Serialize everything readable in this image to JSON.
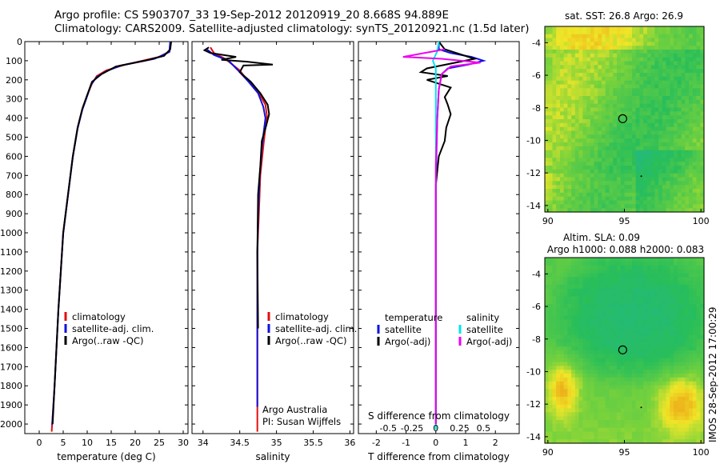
{
  "header": {
    "line1": "Argo profile: CS 5903707_33 19-Sep-2012 20120919_20 8.668S 94.889E",
    "line2": "Climatology: CARS2009. Satellite-adjusted climatology: synTS_20120921.nc (1.5d later)"
  },
  "colors": {
    "climatology": "#e01010",
    "satellite": "#1010e0",
    "argo": "#000000",
    "sat_T": "#1010e0",
    "sat_S": "#00e5ee",
    "argo_S": "#ee00ee"
  },
  "chart_data": [
    {
      "type": "line",
      "xlabel": "temperature (deg C)",
      "ylabel": "",
      "xlim": [
        -3,
        31
      ],
      "ylim": [
        2050,
        0
      ],
      "xticks": [
        0,
        5,
        10,
        15,
        20,
        25,
        30
      ],
      "yticks": [
        0,
        100,
        200,
        300,
        400,
        500,
        600,
        700,
        800,
        900,
        1000,
        1100,
        1200,
        1300,
        1400,
        1500,
        1600,
        1700,
        1800,
        1900,
        2000
      ],
      "legend": [
        "climatology",
        "satellite-adj. clim.",
        "Argo(..raw -QC)"
      ],
      "series": [
        {
          "name": "climatology",
          "color": "#e01010",
          "points": [
            [
              27.3,
              0
            ],
            [
              27.2,
              50
            ],
            [
              25,
              80
            ],
            [
              18,
              120
            ],
            [
              14,
              150
            ],
            [
              12,
              180
            ],
            [
              11,
              220
            ],
            [
              10,
              280
            ],
            [
              9,
              350
            ],
            [
              8,
              450
            ],
            [
              7,
              600
            ],
            [
              6,
              800
            ],
            [
              5,
              1000
            ],
            [
              4.5,
              1200
            ],
            [
              4,
              1400
            ],
            [
              3.6,
              1600
            ],
            [
              3.2,
              1800
            ],
            [
              2.7,
              2000
            ],
            [
              2.6,
              2040
            ]
          ]
        },
        {
          "name": "satellite-adj. clim.",
          "color": "#1010e0",
          "points": [
            [
              27.3,
              0
            ],
            [
              27.1,
              55
            ],
            [
              24,
              90
            ],
            [
              17,
              125
            ],
            [
              14,
              155
            ],
            [
              12,
              185
            ],
            [
              10.8,
              225
            ],
            [
              10,
              285
            ],
            [
              9,
              355
            ],
            [
              8,
              455
            ],
            [
              7,
              605
            ],
            [
              6,
              805
            ],
            [
              5,
              1005
            ],
            [
              4.5,
              1205
            ],
            [
              4,
              1405
            ],
            [
              3.6,
              1605
            ],
            [
              3.2,
              1805
            ],
            [
              2.7,
              2005
            ]
          ]
        },
        {
          "name": "Argo(..raw -QC)",
          "color": "#000000",
          "points": [
            [
              27.5,
              0
            ],
            [
              27.3,
              40
            ],
            [
              26,
              75
            ],
            [
              22,
              100
            ],
            [
              16,
              130
            ],
            [
              13,
              170
            ],
            [
              11,
              210
            ],
            [
              10,
              280
            ],
            [
              9,
              350
            ],
            [
              8,
              450
            ],
            [
              7,
              600
            ],
            [
              6,
              800
            ],
            [
              5,
              1000
            ],
            [
              4.5,
              1200
            ],
            [
              4,
              1400
            ],
            [
              3.6,
              1600
            ],
            [
              3.2,
              1800
            ],
            [
              2.8,
              2000
            ]
          ]
        }
      ]
    },
    {
      "type": "line",
      "xlabel": "salinity",
      "ylabel": "",
      "xlim": [
        33.85,
        36.05
      ],
      "ylim": [
        2050,
        0
      ],
      "xticks": [
        34,
        34.5,
        35,
        35.5,
        36
      ],
      "xticklabels": [
        "34",
        "34.5",
        "35",
        "35.5",
        "36"
      ],
      "legend": [
        "climatology",
        "satellite-adj. clim.",
        "Argo(..raw -QC)"
      ],
      "annotations": [
        "Argo Australia",
        "PI: Susan Wijffels"
      ],
      "series": [
        {
          "name": "climatology",
          "color": "#e01010",
          "points": [
            [
              34.1,
              30
            ],
            [
              34.15,
              60
            ],
            [
              34.3,
              90
            ],
            [
              34.5,
              150
            ],
            [
              34.6,
              200
            ],
            [
              34.75,
              260
            ],
            [
              34.85,
              330
            ],
            [
              34.87,
              390
            ],
            [
              34.85,
              450
            ],
            [
              34.82,
              550
            ],
            [
              34.78,
              700
            ],
            [
              34.76,
              900
            ],
            [
              34.74,
              1100
            ],
            [
              34.74,
              1300
            ],
            [
              34.74,
              1500
            ],
            [
              34.74,
              1800
            ],
            [
              34.74,
              2040
            ]
          ]
        },
        {
          "name": "satellite-adj. clim.",
          "color": "#1010e0",
          "points": [
            [
              34.05,
              40
            ],
            [
              34.15,
              70
            ],
            [
              34.35,
              100
            ],
            [
              34.5,
              160
            ],
            [
              34.62,
              210
            ],
            [
              34.75,
              270
            ],
            [
              34.82,
              340
            ],
            [
              34.85,
              400
            ],
            [
              34.83,
              460
            ],
            [
              34.8,
              560
            ],
            [
              34.77,
              710
            ],
            [
              34.75,
              910
            ],
            [
              34.74,
              1110
            ],
            [
              34.74,
              1510
            ],
            [
              34.74,
              1910
            ]
          ]
        },
        {
          "name": "Argo(..raw -QC)",
          "color": "#000000",
          "points": [
            [
              34.08,
              30
            ],
            [
              34.02,
              45
            ],
            [
              34.1,
              60
            ],
            [
              34.45,
              80
            ],
            [
              34.25,
              95
            ],
            [
              34.6,
              105
            ],
            [
              34.95,
              120
            ],
            [
              34.55,
              125
            ],
            [
              34.5,
              160
            ],
            [
              34.65,
              210
            ],
            [
              34.78,
              270
            ],
            [
              34.88,
              330
            ],
            [
              34.9,
              380
            ],
            [
              34.86,
              440
            ],
            [
              34.8,
              520
            ],
            [
              34.78,
              650
            ],
            [
              34.75,
              800
            ],
            [
              34.74,
              1100
            ],
            [
              34.75,
              1500
            ]
          ]
        }
      ]
    },
    {
      "type": "line",
      "xlabel": "T difference from climatology",
      "xlabel2": "S difference from climatology",
      "xlim": [
        -2.6,
        2.8
      ],
      "ylim": [
        2050,
        0
      ],
      "xticks": [
        -2,
        -1,
        0,
        1,
        2
      ],
      "xticklabels": [
        "-2",
        "-1",
        "0",
        "1",
        "2"
      ],
      "sticks": [
        -0.5,
        -0.25,
        0,
        0.25,
        0.5
      ],
      "sticklabels": [
        "-0.5",
        "-0.25",
        "0",
        "0.25",
        "0.5"
      ],
      "legend_T_title": "temperature",
      "legend_S_title": "salinity",
      "legend_T": [
        "satellite",
        "Argo(-adj)"
      ],
      "legend_S": [
        "satellite",
        "Argo(-adj)"
      ],
      "series": [
        {
          "name": "temperature satellite",
          "color": "#1010e0",
          "points": [
            [
              0.1,
              0
            ],
            [
              0.1,
              40
            ],
            [
              0.5,
              60
            ],
            [
              1.2,
              80
            ],
            [
              1.6,
              100
            ],
            [
              1.1,
              120
            ],
            [
              0.4,
              140
            ],
            [
              0.2,
              170
            ],
            [
              0.1,
              250
            ],
            [
              0.05,
              400
            ],
            [
              0.02,
              600
            ],
            [
              0,
              800
            ],
            [
              0,
              1200
            ],
            [
              0,
              1600
            ],
            [
              0,
              2000
            ]
          ]
        },
        {
          "name": "temperature Argo(-adj)",
          "color": "#000000",
          "points": [
            [
              0.1,
              0
            ],
            [
              0.3,
              40
            ],
            [
              1.3,
              90
            ],
            [
              -0.3,
              140
            ],
            [
              -0.5,
              160
            ],
            [
              0.4,
              180
            ],
            [
              -0.3,
              200
            ],
            [
              0.5,
              240
            ],
            [
              0.3,
              290
            ],
            [
              0.4,
              330
            ],
            [
              0.5,
              380
            ],
            [
              0.35,
              450
            ],
            [
              0.3,
              520
            ],
            [
              0.1,
              600
            ],
            [
              0,
              750
            ],
            [
              0,
              1000
            ],
            [
              0,
              1300
            ],
            [
              0,
              1600
            ],
            [
              0,
              2000
            ]
          ]
        },
        {
          "name": "salinity satellite",
          "color": "#00e5ee",
          "points": [
            [
              0.1,
              0
            ],
            [
              0.05,
              50
            ],
            [
              -0.1,
              100
            ],
            [
              0,
              140
            ],
            [
              0,
              200
            ],
            [
              0,
              300
            ],
            [
              0,
              600
            ],
            [
              0,
              1000
            ],
            [
              0,
              1400
            ],
            [
              0,
              1800
            ],
            [
              0,
              2030
            ]
          ]
        },
        {
          "name": "salinity Argo(-adj)",
          "color": "#ee00ee",
          "points": [
            [
              0.3,
              40
            ],
            [
              -1.1,
              80
            ],
            [
              0.2,
              90
            ],
            [
              1.5,
              110
            ],
            [
              0.5,
              130
            ],
            [
              0.2,
              170
            ],
            [
              0.1,
              250
            ],
            [
              0.05,
              400
            ],
            [
              0,
              650
            ],
            [
              0,
              900
            ],
            [
              0,
              1300
            ],
            [
              0,
              1700
            ],
            [
              0,
              2000
            ]
          ]
        }
      ]
    }
  ],
  "map_sst": {
    "title": "sat. SST: 26.8 Argo: 26.9",
    "yticks": [
      "-4",
      "-6",
      "-8",
      "-10",
      "-12",
      "-14"
    ],
    "xticks": [
      "90",
      "95",
      "100"
    ],
    "marker_lon": 94.889,
    "marker_lat": -8.668
  },
  "map_sla": {
    "title1": "Altim. SLA: 0.09",
    "title2": "Argo h1000: 0.088 h2000: 0.083",
    "yticks": [
      "-4",
      "-6",
      "-8",
      "-10",
      "-12",
      "-14"
    ],
    "xticks": [
      "90",
      "95",
      "100"
    ],
    "marker_lon": 94.889,
    "marker_lat": -8.668
  },
  "stamp": "IMOS 28-Sep-2012 17:00:29"
}
